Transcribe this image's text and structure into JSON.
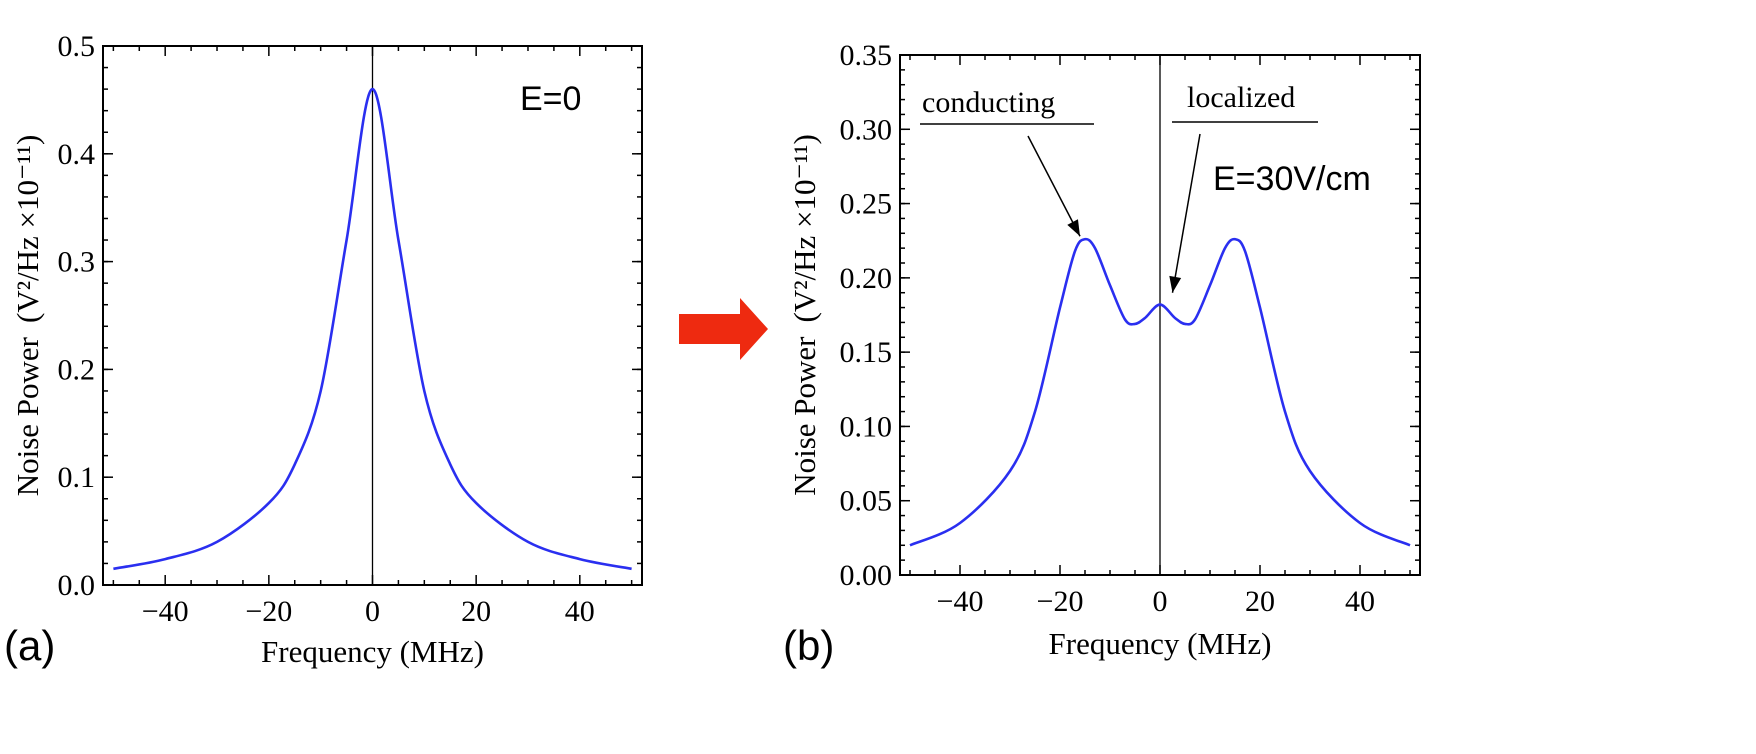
{
  "colors": {
    "curve": "#2a2ff0",
    "arrow": "#ee2a10"
  },
  "transition_arrow": {
    "icon": "right-arrow-icon"
  },
  "chart_data": [
    {
      "type": "line",
      "panel_label": "(a)",
      "annotation": "E=0",
      "xlabel": "Frequency (MHz)",
      "ylabel": "Noise Power",
      "ylabel_units_html": "(V²/Hz ×10⁻¹¹)",
      "xlim": [
        -52,
        52
      ],
      "ylim": [
        0,
        0.5
      ],
      "xticks": [
        -40,
        -20,
        0,
        20,
        40
      ],
      "xtick_labels": [
        "−40",
        "−20",
        "0",
        "20",
        "40"
      ],
      "yticks": [
        0,
        0.1,
        0.2,
        0.3,
        0.4,
        0.5
      ],
      "ytick_labels": [
        "0.0",
        "0.1",
        "0.2",
        "0.3",
        "0.4",
        "0.5"
      ],
      "vertical_line_at": 0,
      "series": [
        {
          "x": [
            -50,
            -40,
            -30,
            -20,
            -15,
            -10,
            -5,
            0,
            5,
            10,
            15,
            20,
            30,
            40,
            50
          ],
          "y": [
            0.015,
            0.024,
            0.04,
            0.076,
            0.112,
            0.18,
            0.32,
            0.46,
            0.32,
            0.18,
            0.112,
            0.076,
            0.04,
            0.024,
            0.015
          ]
        }
      ]
    },
    {
      "type": "line",
      "panel_label": "(b)",
      "annotation": "E=30V/cm",
      "xlabel": "Frequency (MHz)",
      "ylabel": "Noise Power",
      "ylabel_units_html": "(V²/Hz ×10⁻¹¹)",
      "xlim": [
        -52,
        52
      ],
      "ylim": [
        0,
        0.35
      ],
      "xticks": [
        -40,
        -20,
        0,
        20,
        40
      ],
      "xtick_labels": [
        "−40",
        "−20",
        "0",
        "20",
        "40"
      ],
      "yticks": [
        0,
        0.05,
        0.1,
        0.15,
        0.2,
        0.25,
        0.3,
        0.35
      ],
      "ytick_labels": [
        "0.00",
        "0.05",
        "0.10",
        "0.15",
        "0.20",
        "0.25",
        "0.30",
        "0.35"
      ],
      "vertical_line_at": 0,
      "callouts": [
        {
          "label": "conducting",
          "target": [
            -16,
            0.228
          ]
        },
        {
          "label": "localized",
          "target": [
            2.5,
            0.19
          ]
        }
      ],
      "series": [
        {
          "x": [
            -50,
            -40,
            -30,
            -25,
            -20,
            -17,
            -15,
            -13,
            -10,
            -7,
            -5,
            -3,
            0,
            3,
            5,
            7,
            10,
            13,
            15,
            17,
            20,
            25,
            30,
            40,
            50
          ],
          "y": [
            0.02,
            0.035,
            0.07,
            0.11,
            0.18,
            0.218,
            0.226,
            0.22,
            0.195,
            0.172,
            0.169,
            0.173,
            0.182,
            0.173,
            0.169,
            0.172,
            0.195,
            0.22,
            0.226,
            0.218,
            0.18,
            0.11,
            0.07,
            0.035,
            0.02
          ]
        }
      ]
    }
  ]
}
